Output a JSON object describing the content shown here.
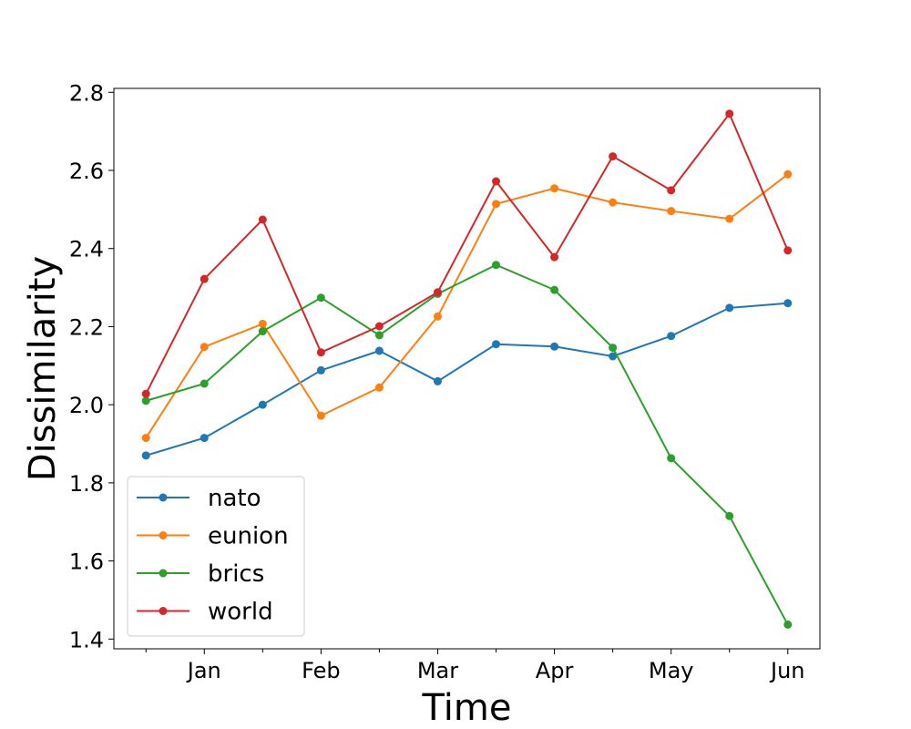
{
  "chart_data": {
    "type": "line",
    "title": "",
    "xlabel": "Time",
    "ylabel": "Dissimilarity",
    "x": [
      0,
      1,
      2,
      3,
      4,
      5,
      6,
      7,
      8,
      9,
      10,
      11
    ],
    "xlim": [
      -0.55,
      11.55
    ],
    "ylim": [
      1.375,
      2.81
    ],
    "yticks": [
      1.4,
      1.6,
      1.8,
      2.0,
      2.2,
      2.4,
      2.6,
      2.8
    ],
    "ytick_labels": [
      "1.4",
      "1.6",
      "1.8",
      "2.0",
      "2.2",
      "2.4",
      "2.6",
      "2.8"
    ],
    "xticks": [
      1,
      3,
      5,
      7,
      9,
      11
    ],
    "xtick_labels": [
      "Jan",
      "Feb",
      "Mar",
      "Apr",
      "May",
      "Jun"
    ],
    "minor_xticks": [
      0,
      2,
      4,
      6,
      8,
      10
    ],
    "grid": false,
    "legend_position": "lower-left",
    "series": [
      {
        "name": "nato",
        "color": "#1f77b4",
        "values": [
          1.87,
          1.915,
          2.0,
          2.088,
          2.138,
          2.06,
          2.155,
          2.149,
          2.124,
          2.176,
          2.248,
          2.26
        ]
      },
      {
        "name": "eunion",
        "color": "#ff7f0e",
        "values": [
          1.915,
          2.148,
          2.207,
          1.972,
          2.044,
          2.226,
          2.514,
          2.554,
          2.518,
          2.496,
          2.476,
          2.59
        ]
      },
      {
        "name": "brics",
        "color": "#2ca02c",
        "values": [
          2.01,
          2.054,
          2.188,
          2.274,
          2.178,
          2.284,
          2.358,
          2.294,
          2.146,
          1.863,
          1.715,
          1.437
        ]
      },
      {
        "name": "world",
        "color": "#d62728",
        "values": [
          2.028,
          2.322,
          2.474,
          2.134,
          2.201,
          2.288,
          2.572,
          2.378,
          2.636,
          2.549,
          2.745,
          2.395
        ]
      }
    ]
  }
}
